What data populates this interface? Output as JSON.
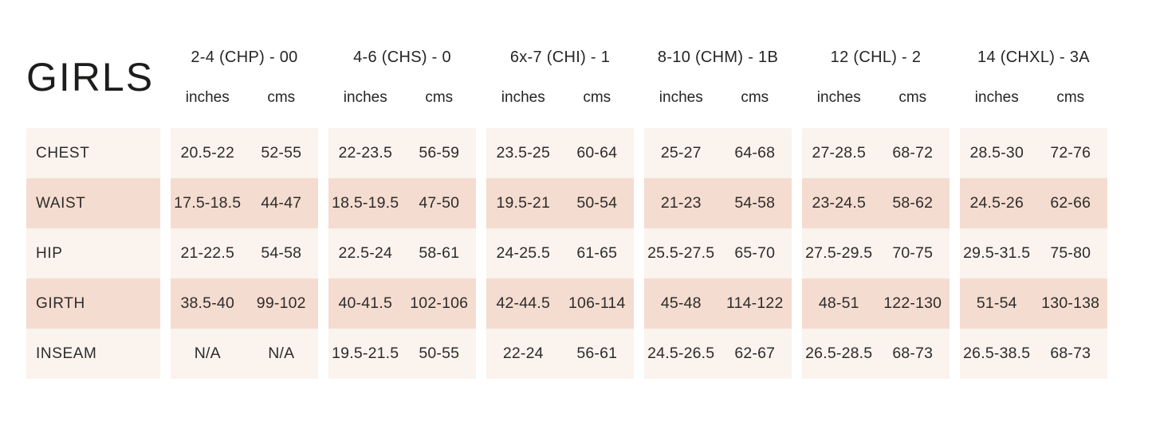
{
  "title": "GIRLS",
  "colors": {
    "page_bg": "#ffffff",
    "row_cream": "#faf3ee",
    "row_pink": "#f5dcd0",
    "text": "#2d2c2b"
  },
  "table": {
    "unit_headers": [
      "inches",
      "cms"
    ],
    "sizes": [
      {
        "label": "2-4 (CHP) - 00"
      },
      {
        "label": "4-6 (CHS) - 0"
      },
      {
        "label": "6x-7 (CHI) - 1"
      },
      {
        "label": "8-10 (CHM) - 1B"
      },
      {
        "label": "12 (CHL) - 2"
      },
      {
        "label": "14 (CHXL) - 3A"
      }
    ],
    "rows": [
      {
        "label": "CHEST",
        "cells": [
          {
            "inches": "20.5-22",
            "cms": "52-55"
          },
          {
            "inches": "22-23.5",
            "cms": "56-59"
          },
          {
            "inches": "23.5-25",
            "cms": "60-64"
          },
          {
            "inches": "25-27",
            "cms": "64-68"
          },
          {
            "inches": "27-28.5",
            "cms": "68-72"
          },
          {
            "inches": "28.5-30",
            "cms": "72-76"
          }
        ]
      },
      {
        "label": "WAIST",
        "cells": [
          {
            "inches": "17.5-18.5",
            "cms": "44-47"
          },
          {
            "inches": "18.5-19.5",
            "cms": "47-50"
          },
          {
            "inches": "19.5-21",
            "cms": "50-54"
          },
          {
            "inches": "21-23",
            "cms": "54-58"
          },
          {
            "inches": "23-24.5",
            "cms": "58-62"
          },
          {
            "inches": "24.5-26",
            "cms": "62-66"
          }
        ]
      },
      {
        "label": "HIP",
        "cells": [
          {
            "inches": "21-22.5",
            "cms": "54-58"
          },
          {
            "inches": "22.5-24",
            "cms": "58-61"
          },
          {
            "inches": "24-25.5",
            "cms": "61-65"
          },
          {
            "inches": "25.5-27.5",
            "cms": "65-70"
          },
          {
            "inches": "27.5-29.5",
            "cms": "70-75"
          },
          {
            "inches": "29.5-31.5",
            "cms": "75-80"
          }
        ]
      },
      {
        "label": "GIRTH",
        "cells": [
          {
            "inches": "38.5-40",
            "cms": "99-102"
          },
          {
            "inches": "40-41.5",
            "cms": "102-106"
          },
          {
            "inches": "42-44.5",
            "cms": "106-114"
          },
          {
            "inches": "45-48",
            "cms": "114-122"
          },
          {
            "inches": "48-51",
            "cms": "122-130"
          },
          {
            "inches": "51-54",
            "cms": "130-138"
          }
        ]
      },
      {
        "label": "INSEAM",
        "cells": [
          {
            "inches": "N/A",
            "cms": "N/A"
          },
          {
            "inches": "19.5-21.5",
            "cms": "50-55"
          },
          {
            "inches": "22-24",
            "cms": "56-61"
          },
          {
            "inches": "24.5-26.5",
            "cms": "62-67"
          },
          {
            "inches": "26.5-28.5",
            "cms": "68-73"
          },
          {
            "inches": "26.5-38.5",
            "cms": "68-73"
          }
        ]
      }
    ]
  },
  "chart_data": {
    "type": "table",
    "title": "GIRLS",
    "column_groups": [
      "2-4 (CHP) - 00",
      "4-6 (CHS) - 0",
      "6x-7 (CHI) - 1",
      "8-10 (CHM) - 1B",
      "12 (CHL) - 2",
      "14 (CHXL) - 3A"
    ],
    "sub_columns": [
      "inches",
      "cms"
    ],
    "rows": [
      [
        "CHEST",
        "20.5-22",
        "52-55",
        "22-23.5",
        "56-59",
        "23.5-25",
        "60-64",
        "25-27",
        "64-68",
        "27-28.5",
        "68-72",
        "28.5-30",
        "72-76"
      ],
      [
        "WAIST",
        "17.5-18.5",
        "44-47",
        "18.5-19.5",
        "47-50",
        "19.5-21",
        "50-54",
        "21-23",
        "54-58",
        "23-24.5",
        "58-62",
        "24.5-26",
        "62-66"
      ],
      [
        "HIP",
        "21-22.5",
        "54-58",
        "22.5-24",
        "58-61",
        "24-25.5",
        "61-65",
        "25.5-27.5",
        "65-70",
        "27.5-29.5",
        "70-75",
        "29.5-31.5",
        "75-80"
      ],
      [
        "GIRTH",
        "38.5-40",
        "99-102",
        "40-41.5",
        "102-106",
        "42-44.5",
        "106-114",
        "45-48",
        "114-122",
        "48-51",
        "122-130",
        "51-54",
        "130-138"
      ],
      [
        "INSEAM",
        "N/A",
        "N/A",
        "19.5-21.5",
        "50-55",
        "22-24",
        "56-61",
        "24.5-26.5",
        "62-67",
        "26.5-28.5",
        "68-73",
        "26.5-38.5",
        "68-73"
      ]
    ],
    "layout": {
      "alternating_row_colors": [
        "#faf3ee",
        "#f5dcd0"
      ],
      "grid": "off",
      "column_gaps_white": true
    }
  }
}
